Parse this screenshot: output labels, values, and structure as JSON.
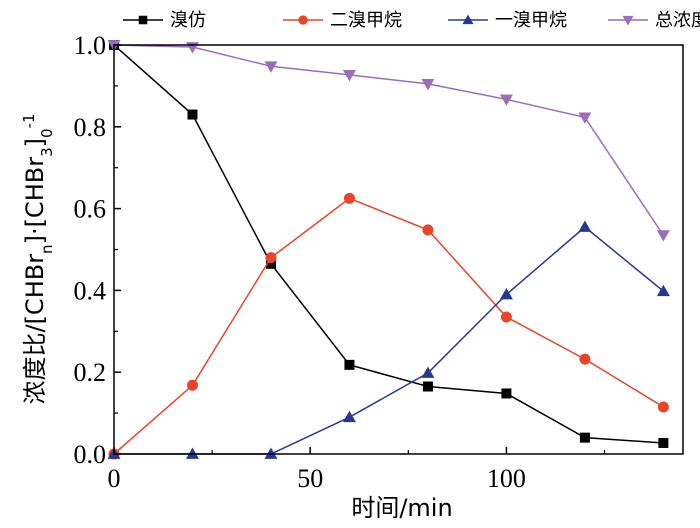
{
  "chart_data": {
    "type": "line",
    "xlabel": "时间/min",
    "ylabel_parts": [
      "浓度比/[CHBr",
      "n",
      "]·[CHBr",
      "3",
      "]",
      "0",
      "-1"
    ],
    "xlim": [
      0,
      145
    ],
    "ylim": [
      0,
      1.0
    ],
    "xticks": [
      0,
      50,
      100
    ],
    "yticks": [
      0.0,
      0.2,
      0.4,
      0.6,
      0.8,
      1.0
    ],
    "ytick_labels": [
      "0.0",
      "0.2",
      "0.4",
      "0.6",
      "0.8",
      "1.0"
    ],
    "legend_position": "top",
    "x": [
      0,
      20,
      40,
      60,
      80,
      100,
      120,
      140
    ],
    "series": [
      {
        "name": "溴仿",
        "color": "#000000",
        "marker": "square",
        "values": [
          1.0,
          0.83,
          0.465,
          0.218,
          0.165,
          0.148,
          0.04,
          0.027
        ]
      },
      {
        "name": "二溴甲烷",
        "color": "#e8442b",
        "marker": "circle",
        "values": [
          0.0,
          0.168,
          0.48,
          0.625,
          0.548,
          0.335,
          0.232,
          0.115
        ]
      },
      {
        "name": "一溴甲烷",
        "color": "#283891",
        "marker": "triangle-up",
        "values": [
          0.0,
          0.0,
          0.0,
          0.09,
          0.198,
          0.39,
          0.555,
          0.398
        ]
      },
      {
        "name": "总浓度",
        "color": "#9b6fb6",
        "marker": "triangle-down",
        "values": [
          1.0,
          0.995,
          0.948,
          0.927,
          0.905,
          0.867,
          0.823,
          0.535
        ]
      }
    ]
  }
}
